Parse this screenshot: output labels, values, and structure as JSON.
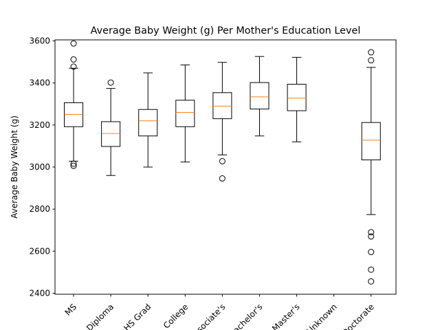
{
  "chart_data": {
    "type": "box",
    "title": "Average Baby Weight (g) Per Mother's Education Level",
    "ylabel": "Average Baby Weight (g)",
    "xlabel": "",
    "ylim": [
      2395,
      3605
    ],
    "yticks": [
      2400,
      2600,
      2800,
      3000,
      3200,
      3400,
      3600
    ],
    "grid": false,
    "categories": [
      "MS",
      "Diploma",
      "HS Grad",
      "College",
      "Associate's",
      "Bachelor's",
      "Master's",
      "Unknown",
      "Doctorate"
    ],
    "boxes": [
      {
        "label": "MS",
        "whisker_low": 3028,
        "q1": 3192,
        "median": 3250,
        "q3": 3306,
        "whisker_high": 3470,
        "fliers": [
          3588,
          3512,
          3478,
          3016,
          3006
        ]
      },
      {
        "label": "Diploma",
        "whisker_low": 2960,
        "q1": 3098,
        "median": 3160,
        "q3": 3216,
        "whisker_high": 3374,
        "fliers": [
          3402
        ]
      },
      {
        "label": "HS Grad",
        "whisker_low": 3000,
        "q1": 3148,
        "median": 3220,
        "q3": 3274,
        "whisker_high": 3448,
        "fliers": []
      },
      {
        "label": "College",
        "whisker_low": 3024,
        "q1": 3192,
        "median": 3260,
        "q3": 3318,
        "whisker_high": 3486,
        "fliers": []
      },
      {
        "label": "Associate's",
        "whisker_low": 3058,
        "q1": 3230,
        "median": 3290,
        "q3": 3354,
        "whisker_high": 3498,
        "fliers": [
          3028,
          2946
        ]
      },
      {
        "label": "Bachelor's",
        "whisker_low": 3148,
        "q1": 3276,
        "median": 3334,
        "q3": 3402,
        "whisker_high": 3526,
        "fliers": []
      },
      {
        "label": "Master's",
        "whisker_low": 3120,
        "q1": 3268,
        "median": 3328,
        "q3": 3394,
        "whisker_high": 3522,
        "fliers": []
      },
      {
        "label": "Unknown",
        "whisker_low": null,
        "q1": null,
        "median": null,
        "q3": null,
        "whisker_high": null,
        "fliers": []
      },
      {
        "label": "Doctorate",
        "whisker_low": 2774,
        "q1": 3034,
        "median": 3128,
        "q3": 3212,
        "whisker_high": 3474,
        "fliers": [
          3546,
          3508,
          2690,
          2670,
          2596,
          2512,
          2456
        ]
      }
    ],
    "colors": {
      "box": "#000000",
      "median": "#ff7f0e",
      "flier": "#000000"
    }
  }
}
